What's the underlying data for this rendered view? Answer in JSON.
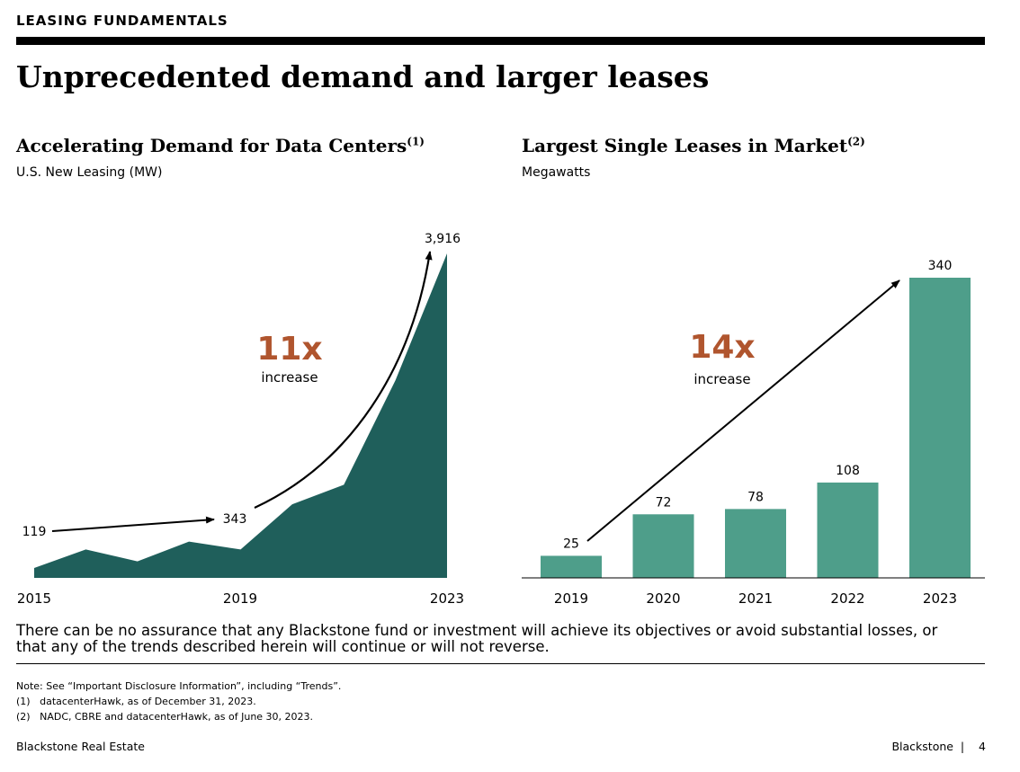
{
  "header": {
    "section": "LEASING FUNDAMENTALS",
    "title": "Unprecedented demand and larger leases"
  },
  "colors": {
    "area": "#1F5F5B",
    "bars": "#4E9E8A",
    "accent": "#B0552E"
  },
  "chart_data": [
    {
      "type": "area",
      "title": "Accelerating Demand for Data Centers",
      "title_note": "(1)",
      "subtitle": "U.S. New Leasing (MW)",
      "x": [
        2015,
        2016,
        2017,
        2018,
        2019,
        2020,
        2021,
        2022,
        2023
      ],
      "values": [
        119,
        343,
        200,
        438,
        343,
        888,
        1124,
        2383,
        3916
      ],
      "x_tick_labels": [
        "2015",
        "2019",
        "2023"
      ],
      "data_labels": {
        "start": "119",
        "mid": "343",
        "end": "3,916"
      },
      "annotation": {
        "multiple": "11x",
        "text": "increase"
      },
      "ylim": [
        0,
        3916
      ],
      "grid": false
    },
    {
      "type": "bar",
      "title": "Largest Single Leases in Market",
      "title_note": "(2)",
      "subtitle": "Megawatts",
      "categories": [
        "2019",
        "2020",
        "2021",
        "2022",
        "2023"
      ],
      "values": [
        25,
        72,
        78,
        108,
        340
      ],
      "value_labels": [
        "25",
        "72",
        "78",
        "108",
        "340"
      ],
      "annotation": {
        "multiple": "14x",
        "text": "increase"
      },
      "ylim": [
        0,
        340
      ],
      "grid": false
    }
  ],
  "disclaimer": "There can be no assurance that any Blackstone fund or investment will achieve its objectives or avoid substantial losses, or that any of the trends described herein will continue or will not reverse.",
  "notes": {
    "note": "Note: See “Important Disclosure Information”, including “Trends”.",
    "n1_num": "(1)",
    "n1_text": "datacenterHawk, as of December 31, 2023.",
    "n2_num": "(2)",
    "n2_text": "NADC, CBRE and datacenterHawk, as of June 30, 2023."
  },
  "footer": {
    "left": "Blackstone Real Estate",
    "right": "Blackstone",
    "sep": "|",
    "page": "4"
  }
}
